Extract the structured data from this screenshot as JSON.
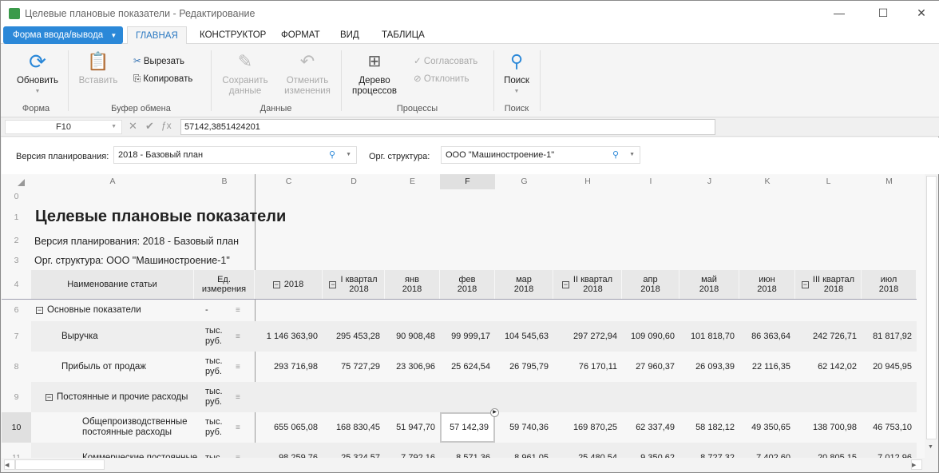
{
  "window": {
    "title": "Целевые плановые показатели - Редактирование",
    "minimize": "—",
    "maximize": "☐",
    "close": "✕"
  },
  "tabs": {
    "form_button": "Форма ввода/вывода",
    "items": [
      "ГЛАВНАЯ",
      "КОНСТРУКТОР",
      "ФОРМАТ",
      "ВИД",
      "ТАБЛИЦА"
    ],
    "active": 0
  },
  "ribbon": {
    "refresh": "Обновить",
    "paste": "Вставить",
    "cut": "Вырезать",
    "copy": "Копировать",
    "save": [
      "Сохранить",
      "данные"
    ],
    "undo": [
      "Отменить",
      "изменения"
    ],
    "tree": [
      "Дерево",
      "процессов"
    ],
    "approve": "Согласовать",
    "reject": "Отклонить",
    "search": "Поиск",
    "groups": [
      "Форма",
      "Буфер обмена",
      "Данные",
      "Процессы",
      "Поиск"
    ]
  },
  "formula_bar": {
    "cell": "F10",
    "value": "57142,3851424201"
  },
  "params": {
    "version_label": "Версия планирования:",
    "version_value": "2018 - Базовый план",
    "org_label": "Орг. структура:",
    "org_value": "ООО \"Машиностроение-1\""
  },
  "grid": {
    "col_letters": [
      "A",
      "B",
      "C",
      "D",
      "E",
      "F",
      "G",
      "H",
      "I",
      "J",
      "K",
      "L",
      "M"
    ],
    "selected_col": "F",
    "selected_row": "10",
    "title": "Целевые плановые показатели",
    "version_line": "Версия планирования: 2018 - Базовый план",
    "org_line": "Орг. структура: ООО \"Машиностроение-1\"",
    "header": {
      "name": "Наименование статьи",
      "unit": [
        "Ед.",
        "измерения"
      ],
      "periods": [
        [
          "2018",
          ""
        ],
        [
          "I квартал",
          "2018"
        ],
        [
          "янв",
          "2018"
        ],
        [
          "фев",
          "2018"
        ],
        [
          "мар",
          "2018"
        ],
        [
          "II квартал",
          "2018"
        ],
        [
          "апр",
          "2018"
        ],
        [
          "май",
          "2018"
        ],
        [
          "июн",
          "2018"
        ],
        [
          "III квартал",
          "2018"
        ],
        [
          "июл",
          "2018"
        ]
      ],
      "collapsible": [
        true,
        true,
        false,
        false,
        false,
        true,
        false,
        false,
        false,
        true,
        false
      ]
    },
    "rows": [
      {
        "num": "6",
        "name": "Основные показатели",
        "level": 0,
        "collapse": true,
        "unit": "-",
        "values": []
      },
      {
        "num": "7",
        "name": "Выручка",
        "level": 1,
        "unit": "тыс. руб.",
        "values": [
          "1 146 363,90",
          "295 453,28",
          "90 908,48",
          "99 999,17",
          "104 545,63",
          "297 272,94",
          "109 090,60",
          "101 818,70",
          "86 363,64",
          "242 726,71",
          "81 817,92"
        ]
      },
      {
        "num": "8",
        "name": "Прибыль от продаж",
        "level": 1,
        "unit": "тыс. руб.",
        "values": [
          "293 716,98",
          "75 727,29",
          "23 306,96",
          "25 624,54",
          "26 795,79",
          "76 170,11",
          "27 960,37",
          "26 093,39",
          "22 116,35",
          "62 142,02",
          "20 945,95"
        ]
      },
      {
        "num": "9",
        "name": "Постоянные и прочие расходы",
        "level": 1,
        "collapse": true,
        "unit": "тыс. руб.",
        "values": []
      },
      {
        "num": "10",
        "name": "Общепроизводственные постоянные расходы",
        "level": 2,
        "unit": "тыс. руб.",
        "values": [
          "655 065,08",
          "168 830,45",
          "51 947,70",
          "57 142,39",
          "59 740,36",
          "169 870,25",
          "62 337,49",
          "58 182,12",
          "49 350,65",
          "138 700,98",
          "46 753,10"
        ]
      },
      {
        "num": "11",
        "name": "Коммерческие постоянные",
        "level": 2,
        "unit": "тыс.",
        "values": [
          "98 259,76",
          "25 324,57",
          "7 792,16",
          "8 571,36",
          "8 961,05",
          "25 480,54",
          "9 350,62",
          "8 727,32",
          "7 402,60",
          "20 805,15",
          "7 012,96"
        ]
      }
    ]
  },
  "colors": {
    "accent": "#2b88d8",
    "selection": "#d9d9d9"
  }
}
